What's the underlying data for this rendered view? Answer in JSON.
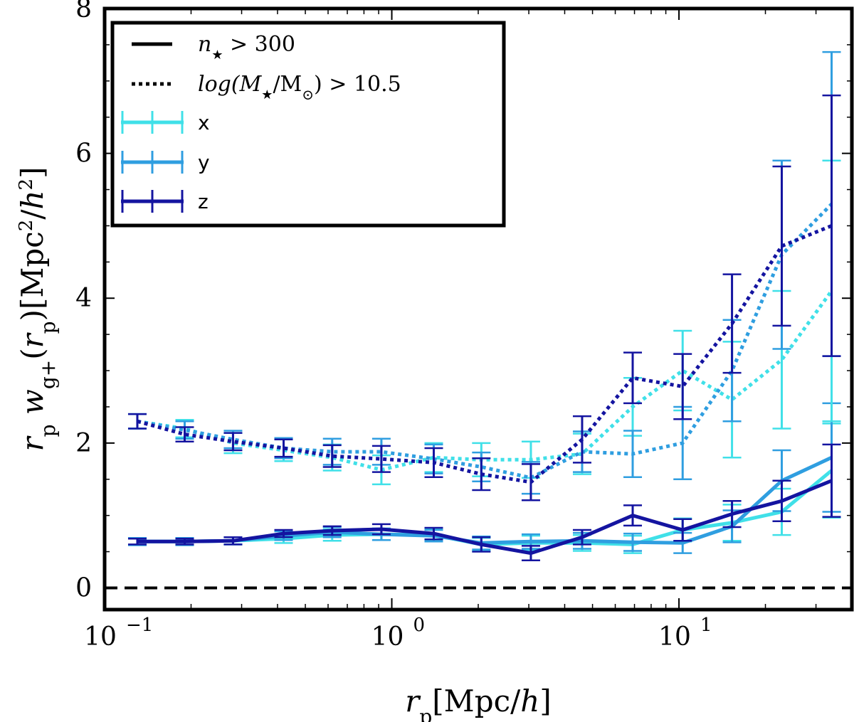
{
  "chart_data": {
    "type": "line",
    "xscale": "log",
    "xlim": [
      0.1,
      40
    ],
    "ylim": [
      -0.3,
      8
    ],
    "xlabel": "r_p[Mpc/h]",
    "ylabel": "r_p w_g+(r_p)[Mpc^2/h^2]",
    "xticks": [
      {
        "value": 0.1,
        "label": "10",
        "exp": "−1"
      },
      {
        "value": 1,
        "label": "10",
        "exp": "0"
      },
      {
        "value": 10,
        "label": "10",
        "exp": "1"
      }
    ],
    "yticks": [
      {
        "value": 0,
        "label": "0"
      },
      {
        "value": 2,
        "label": "2"
      },
      {
        "value": 4,
        "label": "4"
      },
      {
        "value": 6,
        "label": "6"
      },
      {
        "value": 8,
        "label": "8"
      }
    ],
    "reference_line": {
      "y": 0,
      "style": "dashed",
      "color": "#000000"
    },
    "legend": {
      "position": "top-left",
      "style_entries": [
        {
          "label": "n_★ > 300",
          "style": "solid"
        },
        {
          "label": "log(M_★/M_⊙) > 10.5",
          "style": "dotted"
        }
      ],
      "color_entries": [
        {
          "label": "x",
          "color": "#40e0e8"
        },
        {
          "label": "y",
          "color": "#2f9ee0"
        },
        {
          "label": "z",
          "color": "#1414a0"
        }
      ]
    },
    "x": [
      0.13,
      0.19,
      0.28,
      0.42,
      0.62,
      0.92,
      1.4,
      2.05,
      3.05,
      4.6,
      6.9,
      10.3,
      15.3,
      22.8,
      34
    ],
    "series": [
      {
        "name": "x",
        "color": "#40e0e8",
        "style": "solid",
        "y": [
          0.64,
          0.64,
          0.65,
          0.68,
          0.73,
          0.74,
          0.73,
          0.6,
          0.62,
          0.62,
          0.6,
          0.8,
          0.9,
          1.05,
          1.62
        ],
        "err": [
          0.05,
          0.05,
          0.05,
          0.06,
          0.08,
          0.08,
          0.08,
          0.09,
          0.1,
          0.11,
          0.12,
          0.16,
          0.25,
          0.32,
          0.65
        ]
      },
      {
        "name": "y",
        "color": "#2f9ee0",
        "style": "solid",
        "y": [
          0.64,
          0.64,
          0.65,
          0.72,
          0.77,
          0.74,
          0.72,
          0.62,
          0.64,
          0.65,
          0.63,
          0.62,
          0.85,
          1.48,
          1.8
        ],
        "err": [
          0.05,
          0.05,
          0.05,
          0.06,
          0.07,
          0.08,
          0.08,
          0.09,
          0.1,
          0.11,
          0.12,
          0.14,
          0.22,
          0.42,
          0.75
        ]
      },
      {
        "name": "z",
        "color": "#1414a0",
        "style": "solid",
        "y": [
          0.64,
          0.64,
          0.65,
          0.75,
          0.79,
          0.81,
          0.75,
          0.6,
          0.48,
          0.7,
          1.0,
          0.8,
          1.02,
          1.2,
          1.48
        ],
        "err": [
          0.04,
          0.04,
          0.05,
          0.05,
          0.06,
          0.07,
          0.08,
          0.1,
          0.1,
          0.1,
          0.14,
          0.15,
          0.18,
          0.28,
          0.5
        ]
      },
      {
        "name": "x",
        "color": "#40e0e8",
        "style": "dotted",
        "y": [
          2.3,
          2.2,
          2.0,
          1.9,
          1.8,
          1.63,
          1.8,
          1.77,
          1.77,
          1.85,
          2.5,
          3.0,
          2.6,
          3.15,
          4.1
        ],
        "err": [
          0.1,
          0.12,
          0.14,
          0.15,
          0.18,
          0.2,
          0.2,
          0.23,
          0.25,
          0.28,
          0.4,
          0.55,
          0.8,
          0.95,
          1.8
        ]
      },
      {
        "name": "y",
        "color": "#2f9ee0",
        "style": "dotted",
        "y": [
          2.3,
          2.18,
          2.05,
          1.93,
          1.88,
          1.88,
          1.78,
          1.67,
          1.52,
          1.88,
          1.85,
          2.0,
          3.0,
          4.6,
          5.3
        ],
        "err": [
          0.1,
          0.12,
          0.12,
          0.14,
          0.18,
          0.18,
          0.2,
          0.2,
          0.22,
          0.28,
          0.32,
          0.5,
          0.7,
          1.3,
          2.1
        ]
      },
      {
        "name": "z",
        "color": "#1414a0",
        "style": "dotted",
        "y": [
          2.3,
          2.12,
          2.02,
          1.93,
          1.82,
          1.78,
          1.73,
          1.57,
          1.46,
          2.05,
          2.9,
          2.78,
          3.65,
          4.72,
          5.0
        ],
        "err": [
          0.1,
          0.1,
          0.12,
          0.12,
          0.15,
          0.18,
          0.2,
          0.22,
          0.25,
          0.32,
          0.35,
          0.45,
          0.68,
          1.1,
          1.8
        ]
      }
    ]
  }
}
